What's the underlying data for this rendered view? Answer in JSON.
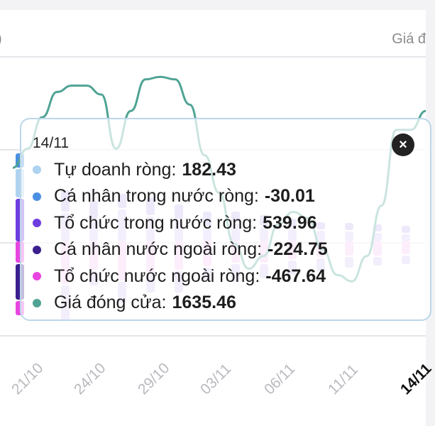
{
  "header": {
    "left_fragment": ")",
    "right_label": "Giá đ"
  },
  "tooltip": {
    "date": "14/11",
    "close_symbol": "×",
    "rows": [
      {
        "label": "Tự doanh ròng:",
        "value": "182.43",
        "color": "#aed3f0"
      },
      {
        "label": "Cá nhân trong nước ròng:",
        "value": "-30.01",
        "color": "#4a90e2"
      },
      {
        "label": "Tổ chức trong nước ròng:",
        "value": "539.96",
        "color": "#6d3de0"
      },
      {
        "label": "Cá nhân nước ngoài ròng:",
        "value": "-224.75",
        "color": "#3b1f8f"
      },
      {
        "label": "Tổ chức nước ngoài ròng:",
        "value": "-467.64",
        "color": "#e845e0"
      },
      {
        "label": "Giá đóng cửa:",
        "value": "1635.46",
        "color": "#4fa394"
      }
    ]
  },
  "chart_data": {
    "type": "bar",
    "x_tick_labels": [
      "21/10",
      "24/10",
      "29/10",
      "03/11",
      "06/11",
      "11/11",
      "14/11"
    ],
    "active_tick": "14/11",
    "highlighted_category": "14/11",
    "series": [
      {
        "name": "Tự doanh ròng",
        "color": "#aed3f0",
        "values_on_14/11": 182.43
      },
      {
        "name": "Cá nhân trong nước ròng",
        "color": "#4a90e2",
        "values_on_14/11": -30.01
      },
      {
        "name": "Tổ chức trong nước ròng",
        "color": "#6d3de0",
        "values_on_14/11": 539.96
      },
      {
        "name": "Cá nhân nước ngoài ròng",
        "color": "#3b1f8f",
        "values_on_14/11": -224.75
      },
      {
        "name": "Tổ chức nước ngoài ròng",
        "color": "#e845e0",
        "values_on_14/11": -467.64
      },
      {
        "name": "Giá đóng cửa",
        "color": "#4fa394",
        "values_on_14/11": 1635.46,
        "kind": "line"
      }
    ],
    "bar_segments_scaled": [
      {
        "cat": 1,
        "pos": [
          60,
          40,
          20
        ],
        "neg": [
          30,
          50,
          20
        ]
      },
      {
        "cat": 2,
        "pos": [
          40,
          30
        ],
        "neg": [
          60,
          50
        ]
      },
      {
        "cat": 3,
        "pos": [
          30,
          25,
          15
        ],
        "neg": [
          40,
          20
        ]
      },
      {
        "cat": 4,
        "pos": [
          45,
          20
        ],
        "neg": [
          55,
          30
        ]
      },
      {
        "cat": 5,
        "pos": [
          35,
          25
        ],
        "neg": [
          45,
          25
        ]
      },
      {
        "cat": 6,
        "pos": [
          30,
          20
        ],
        "neg": [
          40,
          30
        ]
      },
      {
        "cat": 7,
        "pos": [
          20,
          20
        ],
        "neg": [
          35,
          20
        ]
      },
      {
        "cat": 8,
        "pos": [
          25,
          15
        ],
        "neg": [
          30,
          25
        ]
      },
      {
        "cat": 9,
        "pos": [
          20,
          15
        ],
        "neg": [
          30,
          20
        ]
      },
      {
        "cat": 10,
        "pos": [
          18,
          12
        ],
        "neg": [
          25,
          20
        ]
      },
      {
        "cat": 11,
        "pos": [
          15,
          10
        ],
        "neg": [
          22,
          18
        ]
      },
      {
        "cat": 12,
        "pos": [
          14,
          10
        ],
        "neg": [
          20,
          15
        ]
      },
      {
        "cat": 13,
        "pos": [
          12,
          10
        ],
        "neg": [
          20,
          12
        ]
      },
      {
        "cat": 14,
        "pos": [
          10,
          10
        ],
        "neg": [
          18,
          12
        ]
      }
    ],
    "price_line": [
      1590,
      1605,
      1630,
      1650,
      1655,
      1655,
      1648,
      1605,
      1635,
      1660,
      1662,
      1660,
      1640,
      1600,
      1570,
      1530,
      1510,
      1520,
      1545,
      1555,
      1550,
      1525,
      1505,
      1500,
      1520,
      1560,
      1620,
      1620,
      1635
    ]
  }
}
